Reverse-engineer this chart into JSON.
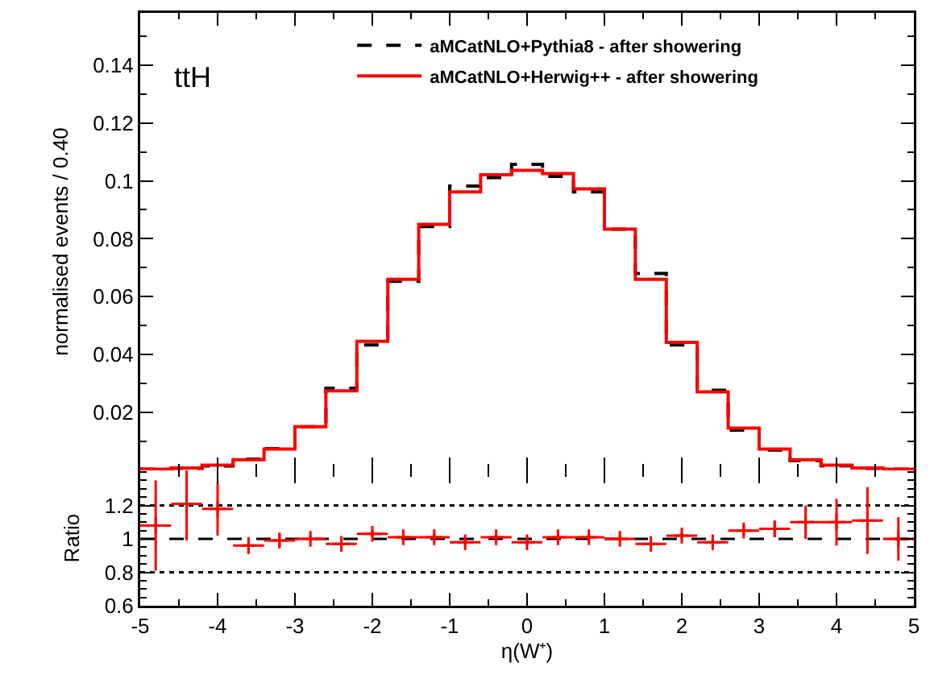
{
  "chart_data": [
    {
      "type": "histogram",
      "ylabel": "normalised events / 0.40",
      "annotations": [
        "ttH"
      ],
      "bins": [
        -5,
        -4.6,
        -4.2,
        -3.8,
        -3.4,
        -3,
        -2.6,
        -2.2,
        -1.8,
        -1.4,
        -1,
        -0.6,
        -0.2,
        0.2,
        0.6,
        1,
        1.4,
        1.8,
        2.2,
        2.6,
        3,
        3.4,
        3.8,
        4.2,
        4.6,
        5
      ],
      "series": [
        {
          "name": "aMCatNLO+Pythia8 - after showering",
          "color": "#000000",
          "line_style": "dashed",
          "values": [
            0.0004,
            0.0007,
            0.0015,
            0.0039,
            0.0075,
            0.0151,
            0.0284,
            0.0433,
            0.0653,
            0.0842,
            0.0982,
            0.1011,
            0.1057,
            0.1015,
            0.0962,
            0.0833,
            0.068,
            0.0433,
            0.0277,
            0.0139,
            0.007,
            0.0034,
            0.0016,
            0.0007,
            0.0004
          ]
        },
        {
          "name": "aMCatNLO+Herwig++ - after showering",
          "color": "#ff0000",
          "line_style": "solid",
          "values": [
            0.0004,
            0.0008,
            0.0018,
            0.0037,
            0.0074,
            0.0151,
            0.0275,
            0.0446,
            0.066,
            0.085,
            0.0962,
            0.1021,
            0.1036,
            0.1025,
            0.0972,
            0.0833,
            0.066,
            0.0442,
            0.0271,
            0.0146,
            0.0074,
            0.0037,
            0.0018,
            0.0008,
            0.0004
          ]
        }
      ],
      "xlim": [
        -5,
        5
      ],
      "xticks": [
        -5,
        -4,
        -3,
        -2,
        -1,
        0,
        1,
        2,
        3,
        4,
        5
      ],
      "ylim": [
        0,
        0.158
      ],
      "yticks": [
        0.02,
        0.04,
        0.06,
        0.08,
        0.1,
        0.12,
        0.14
      ],
      "tick_labels": "y",
      "legend": "top right",
      "grid": false
    },
    {
      "type": "scatter",
      "xlabel": "η(W⁺)",
      "ylabel": "Ratio",
      "marker": "cross",
      "color": "#ff0000",
      "x": [
        -4.8,
        -4.4,
        -4,
        -3.6,
        -3.2,
        -2.8,
        -2.4,
        -2,
        -1.6,
        -1.2,
        -0.8,
        -0.4,
        0,
        0.4,
        0.8,
        1.2,
        1.6,
        2,
        2.4,
        2.8,
        3.2,
        3.6,
        4,
        4.4,
        4.8
      ],
      "values": [
        1.08,
        1.21,
        1.18,
        0.96,
        0.99,
        1.0,
        0.97,
        1.03,
        1.01,
        1.01,
        0.98,
        1.01,
        0.98,
        1.01,
        1.01,
        1.0,
        0.97,
        1.02,
        0.98,
        1.05,
        1.06,
        1.1,
        1.1,
        1.11,
        1.0
      ],
      "errors": [
        0.27,
        0.22,
        0.16,
        0.05,
        0.04,
        0.02,
        0.02,
        0.02,
        0.02,
        0.02,
        0.02,
        0.02,
        0.02,
        0.02,
        0.02,
        0.02,
        0.02,
        0.02,
        0.02,
        0.03,
        0.05,
        0.1,
        0.14,
        0.2,
        0.13
      ],
      "xerrors": [
        0.2,
        0.2,
        0.2,
        0.2,
        0.2,
        0.2,
        0.2,
        0.2,
        0.2,
        0.2,
        0.2,
        0.2,
        0.2,
        0.2,
        0.2,
        0.2,
        0.2,
        0.2,
        0.2,
        0.2,
        0.2,
        0.2,
        0.2,
        0.2,
        0.2
      ],
      "ref_lines": [
        {
          "axis": "y",
          "value": 0.8,
          "line_style": "dotted",
          "color": "#000000"
        },
        {
          "axis": "y",
          "value": 1,
          "line_style": "dashed",
          "color": "#000000"
        },
        {
          "axis": "y",
          "value": 1.2,
          "line_style": "dotted",
          "color": "#000000"
        }
      ],
      "xlim": [
        -5,
        5
      ],
      "xticks": [
        -5,
        -4,
        -3,
        -2,
        -1,
        0,
        1,
        2,
        3,
        4,
        5
      ],
      "ylim": [
        0.6,
        1.41
      ],
      "yticks": [
        0.6,
        0.8,
        1,
        1.2
      ],
      "legend": false,
      "grid": false
    }
  ]
}
